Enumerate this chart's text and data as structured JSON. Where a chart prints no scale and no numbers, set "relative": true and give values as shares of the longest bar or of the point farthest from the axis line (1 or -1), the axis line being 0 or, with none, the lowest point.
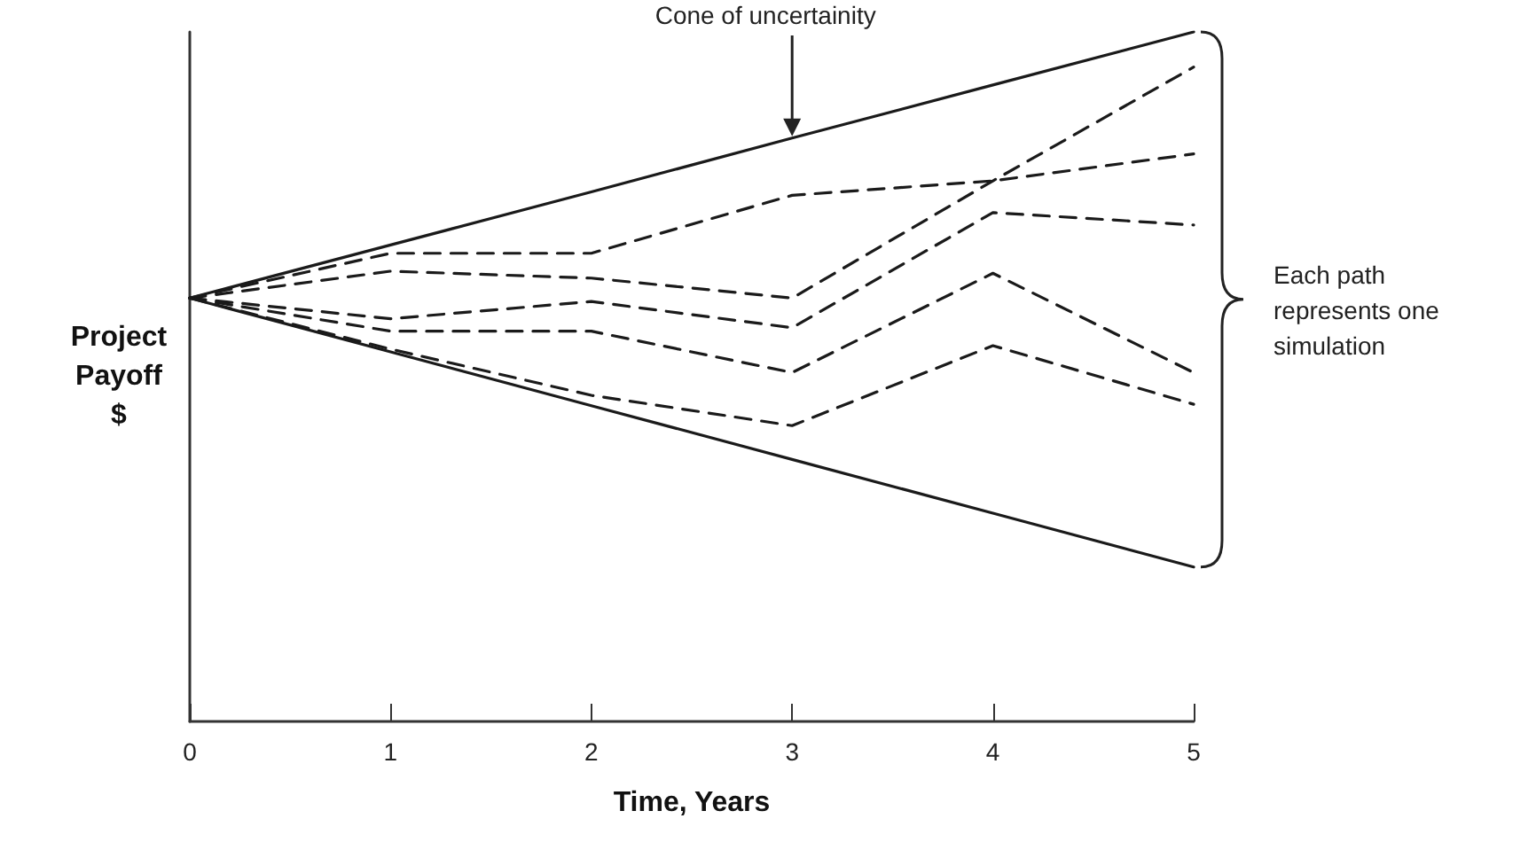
{
  "chart_data": {
    "type": "line",
    "relative": true,
    "xlabel": "Time, Years",
    "ylabel": "Project Payoff $",
    "x": [
      0,
      1,
      2,
      3,
      4,
      5
    ],
    "xlim": [
      0,
      5
    ],
    "xticks": [
      0,
      1,
      2,
      3,
      4,
      5
    ],
    "grid": false,
    "marker": "none",
    "annotations": [
      "Cone of uncertainity",
      "Each path represents one simulation"
    ],
    "series": [
      {
        "color": "#1a1a1a",
        "line_style": "solid",
        "values": [
          0.614,
          0.691,
          0.768,
          0.846,
          0.923,
          1
        ]
      },
      {
        "color": "#1a1a1a",
        "line_style": "solid",
        "values": [
          0.614,
          0.536,
          0.458,
          0.38,
          0.302,
          0.224
        ]
      },
      {
        "color": "#1a1a1a",
        "line_style": "dashed",
        "values": [
          0.614,
          0.679,
          0.679,
          0.763,
          0.784,
          0.823
        ]
      },
      {
        "color": "#1a1a1a",
        "line_style": "dashed",
        "values": [
          0.614,
          0.653,
          0.643,
          0.614,
          0.784,
          0.949
        ]
      },
      {
        "color": "#1a1a1a",
        "line_style": "dashed",
        "values": [
          0.614,
          0.584,
          0.609,
          0.571,
          0.738,
          0.72
        ]
      },
      {
        "color": "#1a1a1a",
        "line_style": "dashed",
        "values": [
          0.614,
          0.566,
          0.566,
          0.506,
          0.65,
          0.506
        ]
      },
      {
        "color": "#1a1a1a",
        "line_style": "dashed",
        "values": [
          0.614,
          0.54,
          0.473,
          0.429,
          0.545,
          0.46
        ]
      }
    ]
  }
}
